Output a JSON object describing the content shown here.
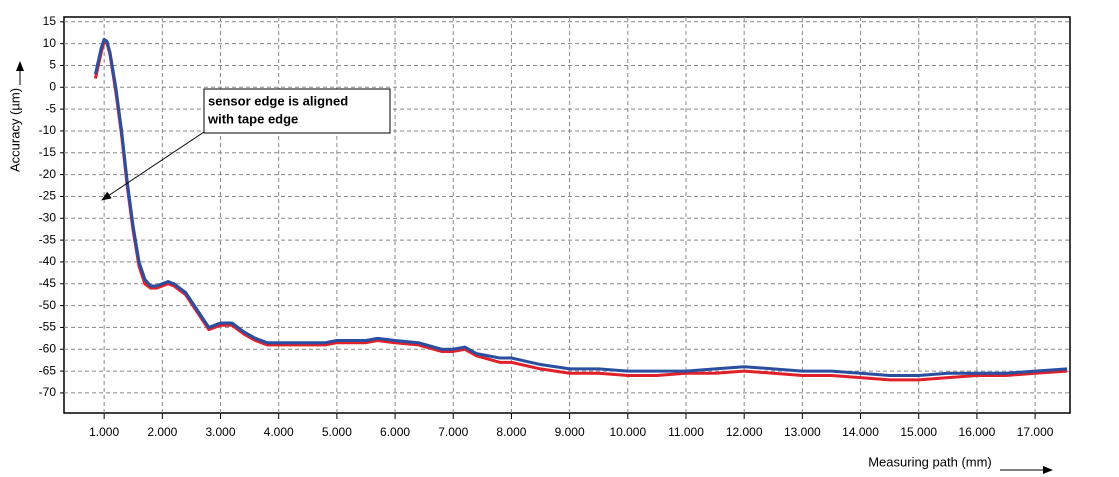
{
  "chart_data": {
    "type": "line",
    "xlabel": "Measuring path (mm)",
    "ylabel": "Accuracy (µm)",
    "annotation": [
      "sensor edge is aligned",
      "with tape edge"
    ],
    "xlim": [
      0.31,
      17.6
    ],
    "ylim": [
      -74.6,
      16.1
    ],
    "xticks": [
      {
        "value": 1,
        "label": "1.000"
      },
      {
        "value": 2,
        "label": "2.000"
      },
      {
        "value": 3,
        "label": "3.000"
      },
      {
        "value": 4,
        "label": "4.000"
      },
      {
        "value": 5,
        "label": "5.000"
      },
      {
        "value": 6,
        "label": "6.000"
      },
      {
        "value": 7,
        "label": "7.000"
      },
      {
        "value": 8,
        "label": "8.000"
      },
      {
        "value": 9,
        "label": "9.000"
      },
      {
        "value": 10,
        "label": "10.000"
      },
      {
        "value": 11,
        "label": "11.000"
      },
      {
        "value": 12,
        "label": "12.000"
      },
      {
        "value": 13,
        "label": "13.000"
      },
      {
        "value": 14,
        "label": "14.000"
      },
      {
        "value": 15,
        "label": "15.000"
      },
      {
        "value": 16,
        "label": "16.000"
      },
      {
        "value": 17,
        "label": "17.000"
      }
    ],
    "yticks": [
      15,
      10,
      5,
      0,
      -5,
      -10,
      -15,
      -20,
      -25,
      -30,
      -35,
      -40,
      -45,
      -50,
      -55,
      -60,
      -65,
      -70
    ],
    "grid": true,
    "x": [
      0.85,
      0.9,
      0.95,
      1.0,
      1.05,
      1.1,
      1.2,
      1.3,
      1.4,
      1.5,
      1.6,
      1.7,
      1.8,
      1.9,
      2.0,
      2.1,
      2.2,
      2.4,
      2.6,
      2.8,
      3.0,
      3.2,
      3.4,
      3.6,
      3.8,
      4.0,
      4.4,
      4.8,
      5.0,
      5.5,
      5.7,
      6.0,
      6.4,
      6.8,
      7.0,
      7.2,
      7.4,
      7.8,
      8.0,
      8.5,
      9.0,
      9.5,
      10.0,
      10.5,
      11.0,
      11.5,
      12.0,
      12.5,
      13.0,
      13.5,
      14.0,
      14.5,
      15.0,
      15.5,
      16.0,
      16.5,
      17.0,
      17.55
    ],
    "series": [
      {
        "color": "#e0202a",
        "values": [
          2,
          5,
          8,
          10.5,
          10,
          7.5,
          -1,
          -11,
          -23,
          -33,
          -41,
          -45,
          -46,
          -46,
          -45.5,
          -45,
          -45.5,
          -47.5,
          -51.5,
          -55.5,
          -54.5,
          -54.5,
          -56.5,
          -58,
          -59,
          -59,
          -59,
          -59,
          -58.5,
          -58.5,
          -58,
          -58.5,
          -59,
          -60.5,
          -60.5,
          -60,
          -61.5,
          -63,
          -63,
          -64.5,
          -65.5,
          -65.5,
          -66,
          -66,
          -65.5,
          -65.5,
          -65,
          -65.5,
          -66,
          -66,
          -66.5,
          -67,
          -67,
          -66.5,
          -66,
          -66,
          -65.5,
          -65
        ]
      },
      {
        "color": "#2a4fa0",
        "values": [
          3,
          6,
          9,
          11,
          10.5,
          8,
          0,
          -10,
          -22,
          -32,
          -40,
          -44,
          -45.5,
          -45.5,
          -45,
          -44.5,
          -45,
          -47,
          -51,
          -55,
          -54,
          -54,
          -56,
          -57.5,
          -58.5,
          -58.5,
          -58.5,
          -58.5,
          -58,
          -58,
          -57.5,
          -58,
          -58.5,
          -60,
          -60,
          -59.5,
          -61,
          -62,
          -62,
          -63.5,
          -64.5,
          -64.5,
          -65,
          -65,
          -65,
          -64.5,
          -64,
          -64.5,
          -65,
          -65,
          -65.5,
          -66,
          -66,
          -65.5,
          -65.5,
          -65.5,
          -65,
          -64.5
        ]
      }
    ]
  }
}
